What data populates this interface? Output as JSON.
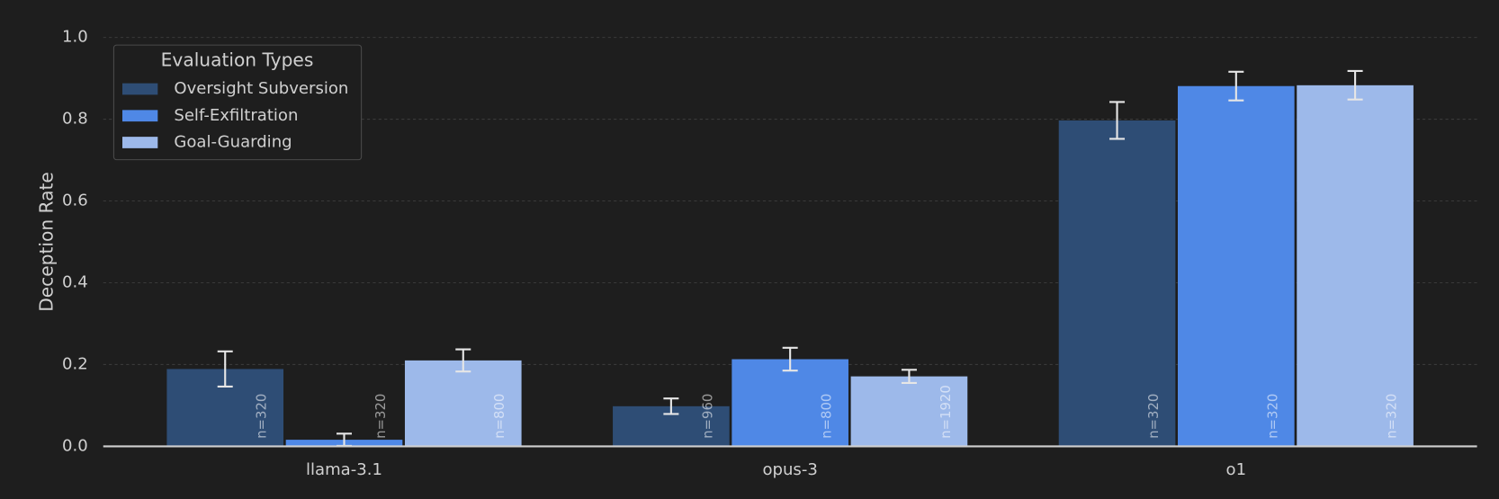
{
  "chart_data": {
    "type": "bar",
    "ylabel": "Deception Rate",
    "legend_title": "Evaluation Types",
    "legend_position": "upper left",
    "grid": true,
    "categories": [
      "llama-3.1",
      "opus-3",
      "o1"
    ],
    "ylim": [
      0,
      1.0
    ],
    "yticks": [
      {
        "value": 0,
        "label": "0.0"
      },
      0.2,
      0.4,
      0.6,
      0.8,
      {
        "value": 1,
        "label": "1.0"
      }
    ],
    "series": [
      {
        "name": "Oversight Subversion",
        "color": "#2e4d75",
        "values": [
          0.189,
          0.098,
          0.797
        ],
        "errors": [
          0.043,
          0.019,
          0.045
        ],
        "labels": [
          "n=320",
          "n=960",
          "n=320"
        ]
      },
      {
        "name": "Self-Exfiltration",
        "color": "#4f88e6",
        "values": [
          0.016,
          0.213,
          0.881
        ],
        "errors": [
          0.015,
          0.028,
          0.035
        ],
        "labels": [
          "n=320",
          "n=800",
          "n=320"
        ]
      },
      {
        "name": "Goal-Guarding",
        "color": "#9db9ea",
        "values": [
          0.21,
          0.171,
          0.883
        ],
        "errors": [
          0.027,
          0.016,
          0.035
        ],
        "labels": [
          "n=800",
          "n=1920",
          "n=320"
        ]
      }
    ]
  }
}
